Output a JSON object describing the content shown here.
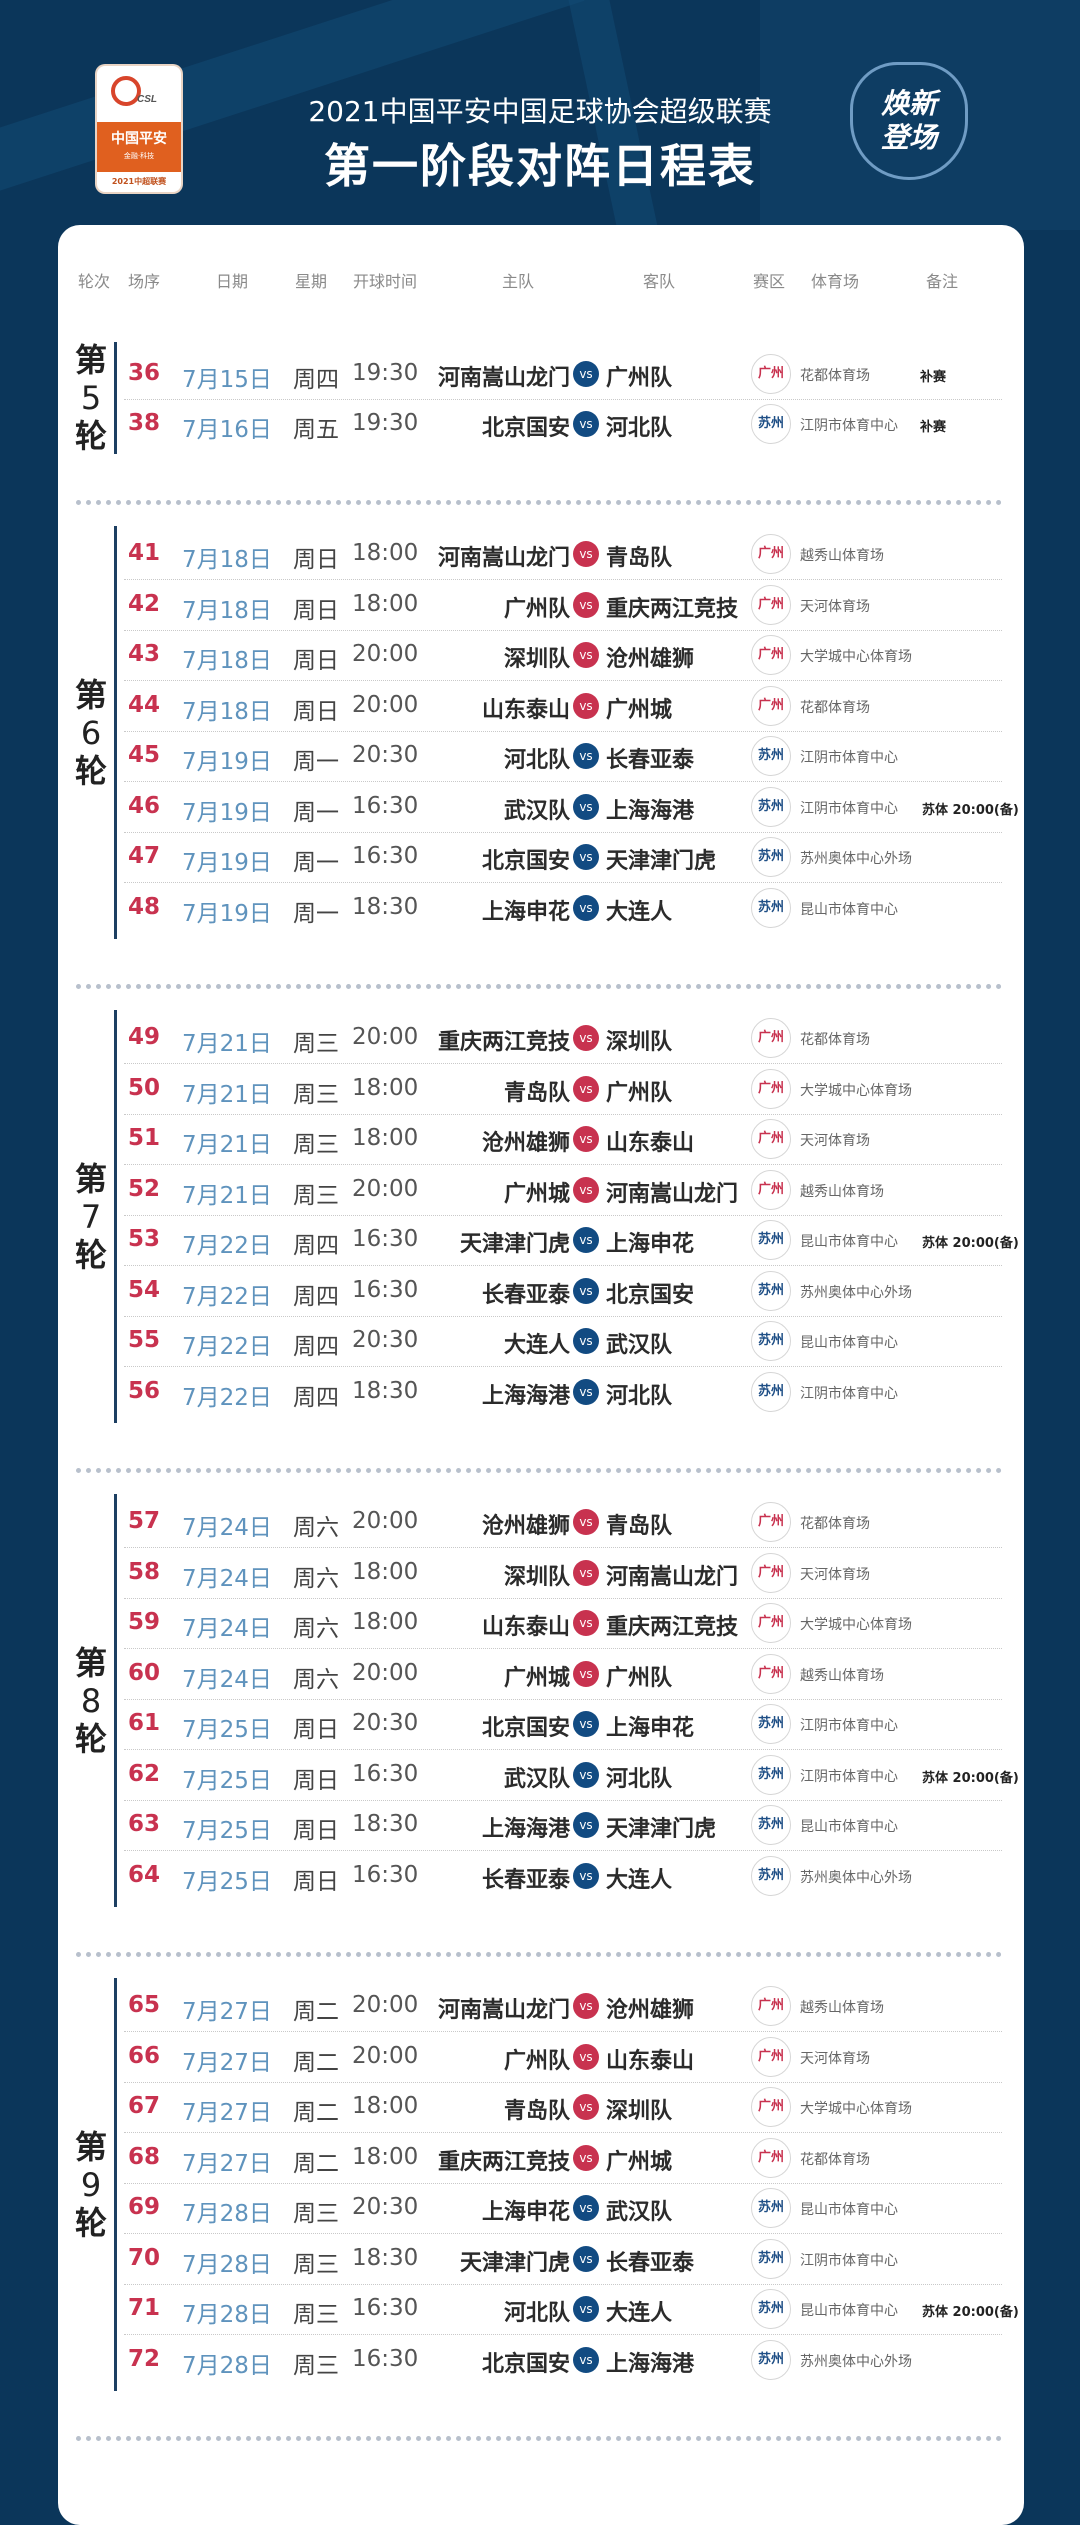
{
  "header": {
    "logo": {
      "brand": "CSL",
      "sponsor": "中国平安",
      "sponsor_tag": "金融·科技",
      "season": "2021中超联赛"
    },
    "title_line1": "2021中国平安中国足球协会超级联赛",
    "title_line2": "第一阶段对阵日程表",
    "badge": [
      "焕新",
      "登场"
    ]
  },
  "columns": [
    "轮次",
    "场序",
    "日期",
    "星期",
    "开球时间",
    "主队",
    "客队",
    "赛区",
    "体育场",
    "备注"
  ],
  "vs_label": "VS",
  "colors": {
    "background": "#0b365a",
    "match_number": "#c8324f",
    "date": "#5f93bd",
    "zone_guangzhou": "#c8324f",
    "zone_suzhou": "#1f4f86",
    "vs_red": "#c8324f",
    "vs_blue": "#124b82"
  },
  "rounds": [
    {
      "label": [
        "第",
        "5",
        "轮"
      ],
      "vs_mode": "blue",
      "matches": [
        {
          "no": "36",
          "date": "7月15日",
          "weekday": "周四",
          "time": "19:30",
          "home": "河南嵩山龙门",
          "away": "广州队",
          "zone": "广州",
          "stadium": "花都体育场",
          "note": "补赛"
        },
        {
          "no": "38",
          "date": "7月16日",
          "weekday": "周五",
          "time": "19:30",
          "home": "北京国安",
          "away": "河北队",
          "zone": "苏州",
          "stadium": "江阴市体育中心",
          "note": "补赛"
        }
      ]
    },
    {
      "label": [
        "第",
        "6",
        "轮"
      ],
      "vs_mode": "zone",
      "matches": [
        {
          "no": "41",
          "date": "7月18日",
          "weekday": "周日",
          "time": "18:00",
          "home": "河南嵩山龙门",
          "away": "青岛队",
          "zone": "广州",
          "stadium": "越秀山体育场",
          "note": ""
        },
        {
          "no": "42",
          "date": "7月18日",
          "weekday": "周日",
          "time": "18:00",
          "home": "广州队",
          "away": "重庆两江竞技",
          "zone": "广州",
          "stadium": "天河体育场",
          "note": ""
        },
        {
          "no": "43",
          "date": "7月18日",
          "weekday": "周日",
          "time": "20:00",
          "home": "深圳队",
          "away": "沧州雄狮",
          "zone": "广州",
          "stadium": "大学城中心体育场",
          "note": ""
        },
        {
          "no": "44",
          "date": "7月18日",
          "weekday": "周日",
          "time": "20:00",
          "home": "山东泰山",
          "away": "广州城",
          "zone": "广州",
          "stadium": "花都体育场",
          "note": ""
        },
        {
          "no": "45",
          "date": "7月19日",
          "weekday": "周一",
          "time": "20:30",
          "home": "河北队",
          "away": "长春亚泰",
          "zone": "苏州",
          "stadium": "江阴市体育中心",
          "note": ""
        },
        {
          "no": "46",
          "date": "7月19日",
          "weekday": "周一",
          "time": "16:30",
          "home": "武汉队",
          "away": "上海海港",
          "zone": "苏州",
          "stadium": "江阴市体育中心",
          "note": "苏体 20:00(备)"
        },
        {
          "no": "47",
          "date": "7月19日",
          "weekday": "周一",
          "time": "16:30",
          "home": "北京国安",
          "away": "天津津门虎",
          "zone": "苏州",
          "stadium": "苏州奥体中心外场",
          "note": ""
        },
        {
          "no": "48",
          "date": "7月19日",
          "weekday": "周一",
          "time": "18:30",
          "home": "上海申花",
          "away": "大连人",
          "zone": "苏州",
          "stadium": "昆山市体育中心",
          "note": ""
        }
      ]
    },
    {
      "label": [
        "第",
        "7",
        "轮"
      ],
      "vs_mode": "zone",
      "matches": [
        {
          "no": "49",
          "date": "7月21日",
          "weekday": "周三",
          "time": "20:00",
          "home": "重庆两江竞技",
          "away": "深圳队",
          "zone": "广州",
          "stadium": "花都体育场",
          "note": ""
        },
        {
          "no": "50",
          "date": "7月21日",
          "weekday": "周三",
          "time": "18:00",
          "home": "青岛队",
          "away": "广州队",
          "zone": "广州",
          "stadium": "大学城中心体育场",
          "note": ""
        },
        {
          "no": "51",
          "date": "7月21日",
          "weekday": "周三",
          "time": "18:00",
          "home": "沧州雄狮",
          "away": "山东泰山",
          "zone": "广州",
          "stadium": "天河体育场",
          "note": ""
        },
        {
          "no": "52",
          "date": "7月21日",
          "weekday": "周三",
          "time": "20:00",
          "home": "广州城",
          "away": "河南嵩山龙门",
          "zone": "广州",
          "stadium": "越秀山体育场",
          "note": ""
        },
        {
          "no": "53",
          "date": "7月22日",
          "weekday": "周四",
          "time": "16:30",
          "home": "天津津门虎",
          "away": "上海申花",
          "zone": "苏州",
          "stadium": "昆山市体育中心",
          "note": "苏体 20:00(备)"
        },
        {
          "no": "54",
          "date": "7月22日",
          "weekday": "周四",
          "time": "16:30",
          "home": "长春亚泰",
          "away": "北京国安",
          "zone": "苏州",
          "stadium": "苏州奥体中心外场",
          "note": ""
        },
        {
          "no": "55",
          "date": "7月22日",
          "weekday": "周四",
          "time": "20:30",
          "home": "大连人",
          "away": "武汉队",
          "zone": "苏州",
          "stadium": "昆山市体育中心",
          "note": ""
        },
        {
          "no": "56",
          "date": "7月22日",
          "weekday": "周四",
          "time": "18:30",
          "home": "上海海港",
          "away": "河北队",
          "zone": "苏州",
          "stadium": "江阴市体育中心",
          "note": ""
        }
      ]
    },
    {
      "label": [
        "第",
        "8",
        "轮"
      ],
      "vs_mode": "zone",
      "matches": [
        {
          "no": "57",
          "date": "7月24日",
          "weekday": "周六",
          "time": "20:00",
          "home": "沧州雄狮",
          "away": "青岛队",
          "zone": "广州",
          "stadium": "花都体育场",
          "note": ""
        },
        {
          "no": "58",
          "date": "7月24日",
          "weekday": "周六",
          "time": "18:00",
          "home": "深圳队",
          "away": "河南嵩山龙门",
          "zone": "广州",
          "stadium": "天河体育场",
          "note": ""
        },
        {
          "no": "59",
          "date": "7月24日",
          "weekday": "周六",
          "time": "18:00",
          "home": "山东泰山",
          "away": "重庆两江竞技",
          "zone": "广州",
          "stadium": "大学城中心体育场",
          "note": ""
        },
        {
          "no": "60",
          "date": "7月24日",
          "weekday": "周六",
          "time": "20:00",
          "home": "广州城",
          "away": "广州队",
          "zone": "广州",
          "stadium": "越秀山体育场",
          "note": ""
        },
        {
          "no": "61",
          "date": "7月25日",
          "weekday": "周日",
          "time": "20:30",
          "home": "北京国安",
          "away": "上海申花",
          "zone": "苏州",
          "stadium": "江阴市体育中心",
          "note": ""
        },
        {
          "no": "62",
          "date": "7月25日",
          "weekday": "周日",
          "time": "16:30",
          "home": "武汉队",
          "away": "河北队",
          "zone": "苏州",
          "stadium": "江阴市体育中心",
          "note": "苏体 20:00(备)"
        },
        {
          "no": "63",
          "date": "7月25日",
          "weekday": "周日",
          "time": "18:30",
          "home": "上海海港",
          "away": "天津津门虎",
          "zone": "苏州",
          "stadium": "昆山市体育中心",
          "note": ""
        },
        {
          "no": "64",
          "date": "7月25日",
          "weekday": "周日",
          "time": "16:30",
          "home": "长春亚泰",
          "away": "大连人",
          "zone": "苏州",
          "stadium": "苏州奥体中心外场",
          "note": ""
        }
      ]
    },
    {
      "label": [
        "第",
        "9",
        "轮"
      ],
      "vs_mode": "zone",
      "matches": [
        {
          "no": "65",
          "date": "7月27日",
          "weekday": "周二",
          "time": "20:00",
          "home": "河南嵩山龙门",
          "away": "沧州雄狮",
          "zone": "广州",
          "stadium": "越秀山体育场",
          "note": ""
        },
        {
          "no": "66",
          "date": "7月27日",
          "weekday": "周二",
          "time": "20:00",
          "home": "广州队",
          "away": "山东泰山",
          "zone": "广州",
          "stadium": "天河体育场",
          "note": ""
        },
        {
          "no": "67",
          "date": "7月27日",
          "weekday": "周二",
          "time": "18:00",
          "home": "青岛队",
          "away": "深圳队",
          "zone": "广州",
          "stadium": "大学城中心体育场",
          "note": ""
        },
        {
          "no": "68",
          "date": "7月27日",
          "weekday": "周二",
          "time": "18:00",
          "home": "重庆两江竞技",
          "away": "广州城",
          "zone": "广州",
          "stadium": "花都体育场",
          "note": ""
        },
        {
          "no": "69",
          "date": "7月28日",
          "weekday": "周三",
          "time": "20:30",
          "home": "上海申花",
          "away": "武汉队",
          "zone": "苏州",
          "stadium": "昆山市体育中心",
          "note": ""
        },
        {
          "no": "70",
          "date": "7月28日",
          "weekday": "周三",
          "time": "18:30",
          "home": "天津津门虎",
          "away": "长春亚泰",
          "zone": "苏州",
          "stadium": "江阴市体育中心",
          "note": ""
        },
        {
          "no": "71",
          "date": "7月28日",
          "weekday": "周三",
          "time": "16:30",
          "home": "河北队",
          "away": "大连人",
          "zone": "苏州",
          "stadium": "昆山市体育中心",
          "note": "苏体 20:00(备)"
        },
        {
          "no": "72",
          "date": "7月28日",
          "weekday": "周三",
          "time": "16:30",
          "home": "北京国安",
          "away": "上海海港",
          "zone": "苏州",
          "stadium": "苏州奥体中心外场",
          "note": ""
        }
      ]
    }
  ]
}
